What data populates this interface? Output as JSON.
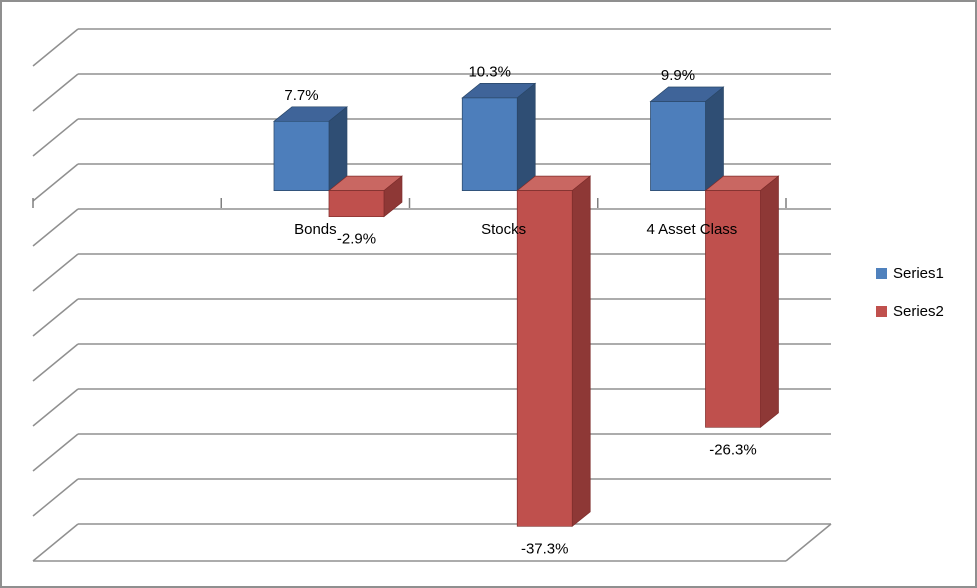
{
  "chart_data": {
    "type": "bar",
    "subtype": "3d_clustered_column",
    "title": "",
    "categories": [
      "Bonds",
      "Stocks",
      "4 Asset Class"
    ],
    "series": [
      {
        "name": "Series1",
        "values": [
          7.7,
          10.3,
          9.9
        ],
        "data_labels": [
          "7.7%",
          "10.3%",
          "9.9%"
        ],
        "colors": {
          "front": "#4D7EBB",
          "top": "#3F6499",
          "side": "#2F4E74",
          "edge": "#2A4768",
          "legend": "#4F81BD"
        }
      },
      {
        "name": "Series2",
        "values": [
          -2.9,
          -37.3,
          -26.3
        ],
        "data_labels": [
          "-2.9%",
          "-37.3%",
          "-26.3%"
        ],
        "colors": {
          "front": "#BF504D",
          "top": "#C96762",
          "side": "#8E3836",
          "edge": "#7E2D2B",
          "legend": "#C0504D"
        }
      }
    ],
    "ylim": [
      -40,
      15
    ],
    "gridline_step_pct": 5,
    "value_format": "0.0%",
    "grid": true,
    "axis_value_labels_visible": false,
    "category_axis_tick_count": 5,
    "legend_position": "right",
    "gridline_color": "#909090",
    "tick_color": "#7F7F7F",
    "text_color": "#000000",
    "background_color": "#FFFFFF",
    "border_color": "#8F8F8F"
  },
  "legend": {
    "items": [
      {
        "label": "Series1",
        "color": "#4F81BD"
      },
      {
        "label": "Series2",
        "color": "#C0504D"
      }
    ]
  }
}
